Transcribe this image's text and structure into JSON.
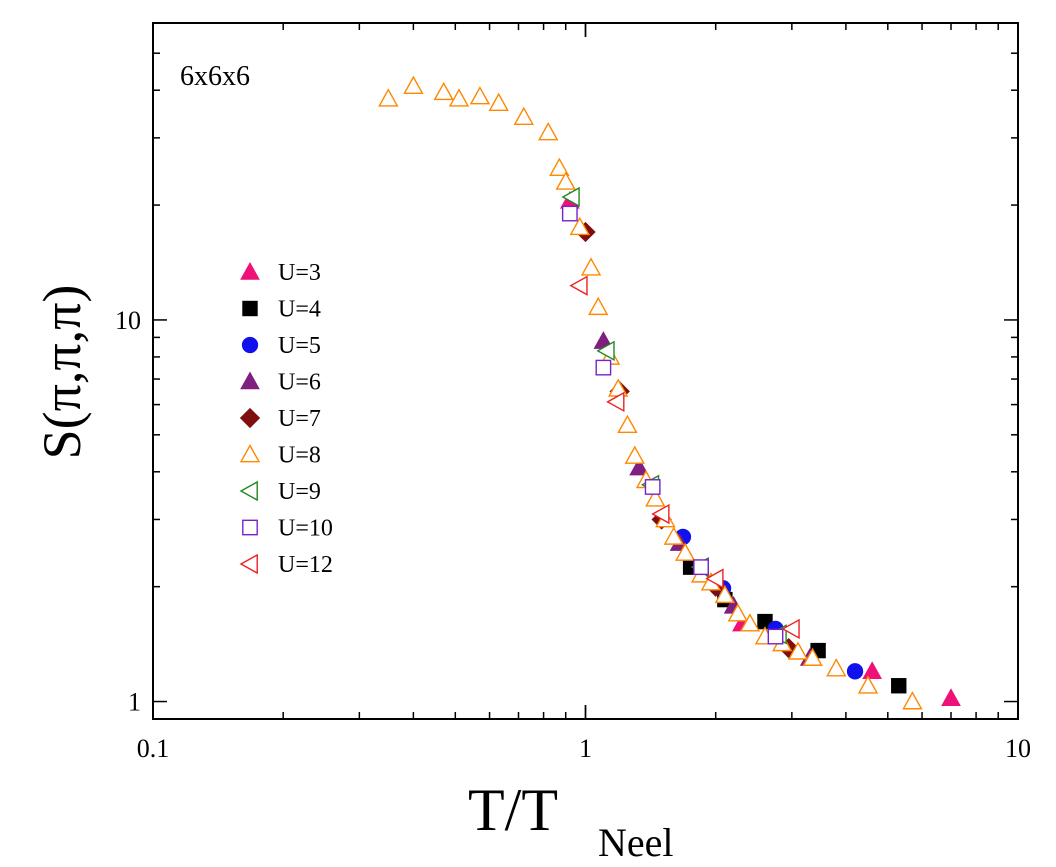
{
  "chart_data": {
    "type": "scatter",
    "title": "",
    "annotation": "6x6x6",
    "xlabel_main": "T/T",
    "xlabel_sub": "Neel",
    "ylabel": "S(π,π,π)",
    "xscale": "log",
    "yscale": "log",
    "xlim": [
      0.1,
      10
    ],
    "ylim": [
      0.9,
      60
    ],
    "xticks": [
      {
        "value": 0.1,
        "label": "0.1"
      },
      {
        "value": 1,
        "label": "1"
      },
      {
        "value": 10,
        "label": "10"
      }
    ],
    "yticks": [
      {
        "value": 1,
        "label": "1"
      },
      {
        "value": 10,
        "label": "10"
      }
    ],
    "legend_position": "left",
    "grid": false,
    "series": [
      {
        "name": "U=3",
        "marker": "triangle-up",
        "filled": true,
        "color": "#ee1177",
        "points": [
          [
            0.92,
            20.5
          ],
          [
            2.3,
            1.6
          ],
          [
            4.6,
            1.2
          ],
          [
            7.0,
            1.02
          ]
        ]
      },
      {
        "name": "U=4",
        "marker": "square",
        "filled": true,
        "color": "#000000",
        "points": [
          [
            1.75,
            2.25
          ],
          [
            2.1,
            1.85
          ],
          [
            2.6,
            1.62
          ],
          [
            3.45,
            1.36
          ],
          [
            5.3,
            1.1
          ]
        ]
      },
      {
        "name": "U=5",
        "marker": "circle",
        "filled": true,
        "color": "#1111ee",
        "points": [
          [
            1.68,
            2.7
          ],
          [
            2.08,
            1.98
          ],
          [
            2.75,
            1.55
          ],
          [
            4.2,
            1.2
          ]
        ]
      },
      {
        "name": "U=6",
        "marker": "triangle-up",
        "filled": true,
        "color": "#7f1f7f",
        "points": [
          [
            1.1,
            8.8
          ],
          [
            1.33,
            4.1
          ],
          [
            1.65,
            2.6
          ],
          [
            2.2,
            1.78
          ],
          [
            3.3,
            1.3
          ]
        ]
      },
      {
        "name": "U=7",
        "marker": "diamond",
        "filled": true,
        "color": "#7f0f0f",
        "points": [
          [
            1.0,
            17.0
          ],
          [
            1.2,
            6.5
          ],
          [
            1.5,
            3.0
          ],
          [
            2.0,
            2.0
          ],
          [
            2.95,
            1.38
          ]
        ]
      },
      {
        "name": "U=8",
        "marker": "triangle-up",
        "filled": false,
        "color": "#ff8800",
        "points": [
          [
            0.35,
            38.0
          ],
          [
            0.4,
            41.0
          ],
          [
            0.47,
            39.5
          ],
          [
            0.51,
            38.0
          ],
          [
            0.57,
            38.5
          ],
          [
            0.63,
            37.0
          ],
          [
            0.72,
            34.0
          ],
          [
            0.82,
            31.0
          ],
          [
            0.87,
            25.0
          ],
          [
            0.9,
            23.0
          ],
          [
            0.97,
            17.5
          ],
          [
            1.03,
            13.7
          ],
          [
            1.07,
            10.8
          ],
          [
            1.14,
            8.0
          ],
          [
            1.19,
            6.6
          ],
          [
            1.25,
            5.3
          ],
          [
            1.3,
            4.4
          ],
          [
            1.38,
            3.8
          ],
          [
            1.45,
            3.4
          ],
          [
            1.53,
            3.0
          ],
          [
            1.6,
            2.7
          ],
          [
            1.7,
            2.45
          ],
          [
            1.85,
            2.15
          ],
          [
            1.95,
            2.05
          ],
          [
            2.1,
            1.9
          ],
          [
            2.25,
            1.7
          ],
          [
            2.4,
            1.6
          ],
          [
            2.6,
            1.48
          ],
          [
            2.85,
            1.42
          ],
          [
            3.1,
            1.35
          ],
          [
            3.35,
            1.3
          ],
          [
            3.8,
            1.22
          ],
          [
            4.5,
            1.1
          ],
          [
            5.7,
            1.0
          ]
        ]
      },
      {
        "name": "U=9",
        "marker": "triangle-left",
        "filled": false,
        "color": "#228822",
        "points": [
          [
            0.93,
            21.0
          ],
          [
            1.12,
            8.3
          ],
          [
            1.42,
            3.7
          ],
          [
            1.85,
            2.25
          ],
          [
            2.8,
            1.5
          ]
        ]
      },
      {
        "name": "U=10",
        "marker": "square",
        "filled": false,
        "color": "#7722cc",
        "points": [
          [
            0.92,
            19.0
          ],
          [
            1.1,
            7.5
          ],
          [
            1.43,
            3.65
          ],
          [
            1.85,
            2.25
          ],
          [
            2.75,
            1.48
          ]
        ]
      },
      {
        "name": "U=12",
        "marker": "triangle-left",
        "filled": false,
        "color": "#ee2222",
        "points": [
          [
            0.97,
            12.3
          ],
          [
            1.18,
            6.1
          ],
          [
            1.5,
            3.1
          ],
          [
            2.0,
            2.1
          ],
          [
            3.0,
            1.55
          ]
        ]
      }
    ]
  }
}
